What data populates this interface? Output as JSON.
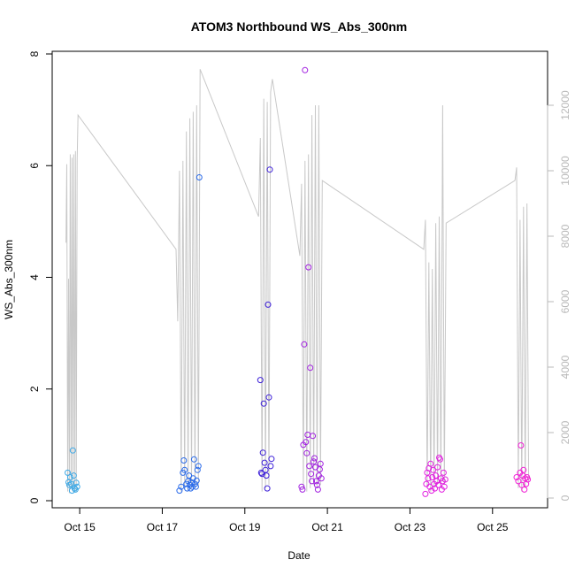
{
  "chart_data": {
    "type": "scatter",
    "title": "ATOM3 Northbound WS_Abs_300nm",
    "xlabel": "Date",
    "ylabel": "WS_Abs_300nm",
    "xlim": [
      "2016-10-14 08:00",
      "2016-10-26 08:00"
    ],
    "ylim": [
      0,
      8
    ],
    "y_ticks": [
      0,
      2,
      4,
      6,
      8
    ],
    "x_ticks": [
      {
        "date": "2016-10-15",
        "label": "Oct 15"
      },
      {
        "date": "2016-10-17",
        "label": "Oct 17"
      },
      {
        "date": "2016-10-19",
        "label": "Oct 19"
      },
      {
        "date": "2016-10-21",
        "label": "Oct 21"
      },
      {
        "date": "2016-10-23",
        "label": "Oct 23"
      },
      {
        "date": "2016-10-25",
        "label": "Oct 25"
      }
    ],
    "y2lim": [
      0,
      13700
    ],
    "y2_ticks": [
      0,
      2000,
      4000,
      6000,
      8000,
      10000,
      12000
    ],
    "grid": false,
    "legend": "none",
    "colors": {
      "axis": "#000000",
      "secondary_line": "#c8c8c8",
      "secondary_axis": "#b8b8b8"
    },
    "flights": [
      {
        "color": "#3ea9e6",
        "points": [
          {
            "x": "2016-10-14 17:00",
            "y": 0.5
          },
          {
            "x": "2016-10-14 17:30",
            "y": 0.33
          },
          {
            "x": "2016-10-14 18:00",
            "y": 0.28
          },
          {
            "x": "2016-10-14 18:30",
            "y": 0.42
          },
          {
            "x": "2016-10-14 19:00",
            "y": 0.3
          },
          {
            "x": "2016-10-14 19:30",
            "y": 0.18
          },
          {
            "x": "2016-10-14 20:00",
            "y": 0.9
          },
          {
            "x": "2016-10-14 20:30",
            "y": 0.45
          },
          {
            "x": "2016-10-14 21:00",
            "y": 0.22
          },
          {
            "x": "2016-10-14 21:30",
            "y": 0.2
          },
          {
            "x": "2016-10-14 22:00",
            "y": 0.32
          },
          {
            "x": "2016-10-14 22:30",
            "y": 0.25
          }
        ]
      },
      {
        "color": "#2a6bea",
        "points": [
          {
            "x": "2016-10-17 10:00",
            "y": 0.18
          },
          {
            "x": "2016-10-17 11:00",
            "y": 0.25
          },
          {
            "x": "2016-10-17 12:00",
            "y": 0.5
          },
          {
            "x": "2016-10-17 12:30",
            "y": 0.72
          },
          {
            "x": "2016-10-17 13:00",
            "y": 0.55
          },
          {
            "x": "2016-10-17 14:00",
            "y": 0.3
          },
          {
            "x": "2016-10-17 14:30",
            "y": 0.22
          },
          {
            "x": "2016-10-17 15:00",
            "y": 0.35
          },
          {
            "x": "2016-10-17 15:30",
            "y": 0.45
          },
          {
            "x": "2016-10-17 16:00",
            "y": 0.28
          },
          {
            "x": "2016-10-17 16:30",
            "y": 0.22
          },
          {
            "x": "2016-10-17 17:00",
            "y": 0.33
          },
          {
            "x": "2016-10-17 17:30",
            "y": 0.25
          },
          {
            "x": "2016-10-17 18:00",
            "y": 0.4
          },
          {
            "x": "2016-10-17 18:30",
            "y": 0.74
          },
          {
            "x": "2016-10-17 19:00",
            "y": 0.3
          },
          {
            "x": "2016-10-17 19:30",
            "y": 0.25
          },
          {
            "x": "2016-10-17 20:00",
            "y": 0.36
          },
          {
            "x": "2016-10-17 20:30",
            "y": 0.55
          },
          {
            "x": "2016-10-17 21:00",
            "y": 0.62
          },
          {
            "x": "2016-10-17 21:30",
            "y": 5.79
          }
        ]
      },
      {
        "color": "#3c1fd8",
        "points": [
          {
            "x": "2016-10-19 09:00",
            "y": 2.16
          },
          {
            "x": "2016-10-19 09:30",
            "y": 0.5
          },
          {
            "x": "2016-10-19 10:00",
            "y": 0.48
          },
          {
            "x": "2016-10-19 10:30",
            "y": 0.86
          },
          {
            "x": "2016-10-19 11:00",
            "y": 1.74
          },
          {
            "x": "2016-10-19 11:30",
            "y": 0.68
          },
          {
            "x": "2016-10-19 12:00",
            "y": 0.55
          },
          {
            "x": "2016-10-19 12:30",
            "y": 0.45
          },
          {
            "x": "2016-10-19 13:00",
            "y": 0.22
          },
          {
            "x": "2016-10-19 13:30",
            "y": 3.51
          },
          {
            "x": "2016-10-19 14:00",
            "y": 1.85
          },
          {
            "x": "2016-10-19 14:30",
            "y": 5.93
          },
          {
            "x": "2016-10-19 15:00",
            "y": 0.62
          },
          {
            "x": "2016-10-19 15:30",
            "y": 0.75
          }
        ]
      },
      {
        "color": "#a11fe0",
        "points": [
          {
            "x": "2016-10-20 09:00",
            "y": 0.25
          },
          {
            "x": "2016-10-20 09:30",
            "y": 0.2
          },
          {
            "x": "2016-10-20 10:00",
            "y": 1.0
          },
          {
            "x": "2016-10-20 10:30",
            "y": 2.8
          },
          {
            "x": "2016-10-20 11:00",
            "y": 7.71
          },
          {
            "x": "2016-10-20 11:30",
            "y": 1.05
          },
          {
            "x": "2016-10-20 12:00",
            "y": 0.85
          },
          {
            "x": "2016-10-20 12:30",
            "y": 1.18
          },
          {
            "x": "2016-10-20 13:00",
            "y": 4.18
          },
          {
            "x": "2016-10-20 13:30",
            "y": 0.62
          },
          {
            "x": "2016-10-20 14:00",
            "y": 2.38
          },
          {
            "x": "2016-10-20 14:30",
            "y": 0.48
          },
          {
            "x": "2016-10-20 15:00",
            "y": 0.35
          },
          {
            "x": "2016-10-20 15:30",
            "y": 1.16
          },
          {
            "x": "2016-10-20 16:00",
            "y": 0.7
          },
          {
            "x": "2016-10-20 16:30",
            "y": 0.76
          },
          {
            "x": "2016-10-20 17:00",
            "y": 0.6
          },
          {
            "x": "2016-10-20 17:30",
            "y": 0.35
          },
          {
            "x": "2016-10-20 18:00",
            "y": 0.28
          },
          {
            "x": "2016-10-20 18:30",
            "y": 0.2
          },
          {
            "x": "2016-10-20 19:00",
            "y": 0.45
          },
          {
            "x": "2016-10-20 19:30",
            "y": 0.56
          },
          {
            "x": "2016-10-20 20:00",
            "y": 0.66
          },
          {
            "x": "2016-10-20 20:30",
            "y": 0.4
          }
        ]
      },
      {
        "color": "#e21fe0",
        "points": [
          {
            "x": "2016-10-23 09:00",
            "y": 0.12
          },
          {
            "x": "2016-10-23 09:30",
            "y": 0.3
          },
          {
            "x": "2016-10-23 10:00",
            "y": 0.5
          },
          {
            "x": "2016-10-23 10:30",
            "y": 0.4
          },
          {
            "x": "2016-10-23 11:00",
            "y": 0.58
          },
          {
            "x": "2016-10-23 11:30",
            "y": 0.25
          },
          {
            "x": "2016-10-23 12:00",
            "y": 0.66
          },
          {
            "x": "2016-10-23 12:30",
            "y": 0.18
          },
          {
            "x": "2016-10-23 13:00",
            "y": 0.42
          },
          {
            "x": "2016-10-23 13:30",
            "y": 0.55
          },
          {
            "x": "2016-10-23 14:00",
            "y": 0.3
          },
          {
            "x": "2016-10-23 14:30",
            "y": 0.22
          },
          {
            "x": "2016-10-23 15:00",
            "y": 0.45
          },
          {
            "x": "2016-10-23 15:30",
            "y": 0.35
          },
          {
            "x": "2016-10-23 16:00",
            "y": 0.6
          },
          {
            "x": "2016-10-23 16:30",
            "y": 0.28
          },
          {
            "x": "2016-10-23 17:00",
            "y": 0.77
          },
          {
            "x": "2016-10-23 17:30",
            "y": 0.74
          },
          {
            "x": "2016-10-23 18:00",
            "y": 0.4
          },
          {
            "x": "2016-10-23 18:30",
            "y": 0.2
          },
          {
            "x": "2016-10-23 19:00",
            "y": 0.35
          },
          {
            "x": "2016-10-23 19:30",
            "y": 0.5
          },
          {
            "x": "2016-10-23 20:00",
            "y": 0.25
          },
          {
            "x": "2016-10-23 20:30",
            "y": 0.38
          }
        ]
      },
      {
        "color": "#f21fd6",
        "points": [
          {
            "x": "2016-10-25 14:00",
            "y": 0.42
          },
          {
            "x": "2016-10-25 15:00",
            "y": 0.35
          },
          {
            "x": "2016-10-25 16:00",
            "y": 0.5
          },
          {
            "x": "2016-10-25 16:30",
            "y": 0.99
          },
          {
            "x": "2016-10-25 17:00",
            "y": 0.28
          },
          {
            "x": "2016-10-25 17:30",
            "y": 0.45
          },
          {
            "x": "2016-10-25 18:00",
            "y": 0.55
          },
          {
            "x": "2016-10-25 18:30",
            "y": 0.2
          },
          {
            "x": "2016-10-25 19:00",
            "y": 0.4
          },
          {
            "x": "2016-10-25 19:30",
            "y": 0.3
          },
          {
            "x": "2016-10-25 20:00",
            "y": 0.42
          },
          {
            "x": "2016-10-25 20:30",
            "y": 0.38
          }
        ]
      }
    ],
    "secondary_line": {
      "x": [
        "2016-10-14 16:00",
        "2016-10-14 16:30",
        "2016-10-14 17:00",
        "2016-10-14 17:30",
        "2016-10-14 18:00",
        "2016-10-14 18:30",
        "2016-10-14 19:00",
        "2016-10-14 19:30",
        "2016-10-14 20:00",
        "2016-10-14 20:30",
        "2016-10-14 21:00",
        "2016-10-14 21:30",
        "2016-10-14 22:00",
        "2016-10-14 22:30",
        "2016-10-14 23:00",
        "2016-10-17 08:00",
        "2016-10-17 09:00",
        "2016-10-17 10:00",
        "2016-10-17 11:00",
        "2016-10-17 12:00",
        "2016-10-17 13:00",
        "2016-10-17 14:00",
        "2016-10-17 15:00",
        "2016-10-17 16:00",
        "2016-10-17 17:00",
        "2016-10-17 18:00",
        "2016-10-17 19:00",
        "2016-10-17 20:00",
        "2016-10-17 21:00",
        "2016-10-17 22:00",
        "2016-10-19 08:00",
        "2016-10-19 09:00",
        "2016-10-19 10:00",
        "2016-10-19 11:00",
        "2016-10-19 12:00",
        "2016-10-19 13:00",
        "2016-10-19 14:00",
        "2016-10-19 15:00",
        "2016-10-19 16:00",
        "2016-10-20 08:00",
        "2016-10-20 09:00",
        "2016-10-20 10:00",
        "2016-10-20 11:00",
        "2016-10-20 12:00",
        "2016-10-20 13:00",
        "2016-10-20 14:00",
        "2016-10-20 15:00",
        "2016-10-20 16:00",
        "2016-10-20 17:00",
        "2016-10-20 18:00",
        "2016-10-20 19:00",
        "2016-10-20 20:00",
        "2016-10-20 21:00",
        "2016-10-23 08:00",
        "2016-10-23 09:00",
        "2016-10-23 10:00",
        "2016-10-23 11:00",
        "2016-10-23 12:00",
        "2016-10-23 13:00",
        "2016-10-23 14:00",
        "2016-10-23 15:00",
        "2016-10-23 16:00",
        "2016-10-23 17:00",
        "2016-10-23 18:00",
        "2016-10-23 19:00",
        "2016-10-23 20:00",
        "2016-10-23 21:00",
        "2016-10-25 13:00",
        "2016-10-25 14:00",
        "2016-10-25 15:00",
        "2016-10-25 16:00",
        "2016-10-25 17:00",
        "2016-10-25 18:00",
        "2016-10-25 19:00",
        "2016-10-25 20:00",
        "2016-10-25 21:00"
      ],
      "y": [
        7800,
        10200,
        200,
        6700,
        150,
        10500,
        300,
        10400,
        200,
        10500,
        200,
        10600,
        200,
        10300,
        11700,
        7600,
        5400,
        10000,
        200,
        10300,
        300,
        11200,
        200,
        11600,
        300,
        11800,
        300,
        12000,
        400,
        13100,
        8600,
        11000,
        200,
        12200,
        300,
        12100,
        400,
        12400,
        12800,
        7400,
        9600,
        300,
        10300,
        200,
        10500,
        300,
        11700,
        400,
        12000,
        300,
        12000,
        400,
        9700,
        7600,
        8500,
        300,
        7200,
        200,
        7000,
        300,
        8400,
        400,
        8600,
        300,
        12000,
        400,
        8400,
        9700,
        10100,
        300,
        8500,
        200,
        8900,
        300,
        9000,
        500
      ]
    }
  }
}
